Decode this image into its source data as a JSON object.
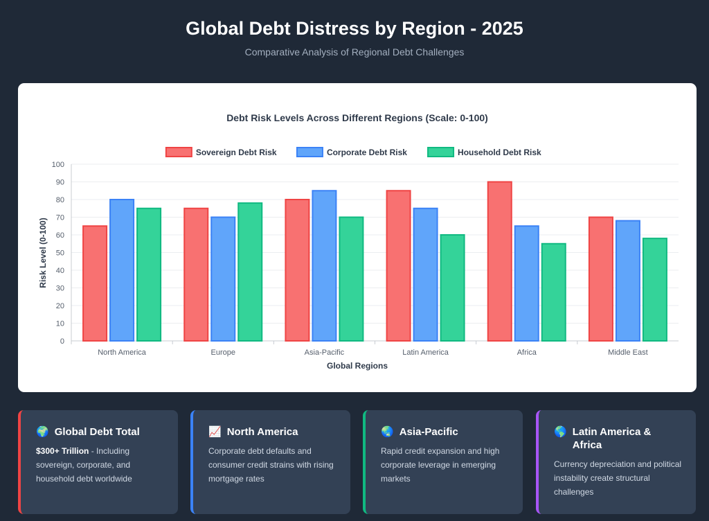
{
  "header": {
    "title": "Global Debt Distress by Region - 2025",
    "subtitle": "Comparative Analysis of Regional Debt Challenges"
  },
  "chart_data": {
    "type": "bar",
    "title": "Debt Risk Levels Across Different Regions (Scale: 0-100)",
    "xlabel": "Global Regions",
    "ylabel": "Risk Level (0-100)",
    "ylim": [
      0,
      100
    ],
    "yticks": [
      0,
      10,
      20,
      30,
      40,
      50,
      60,
      70,
      80,
      90,
      100
    ],
    "grid": true,
    "legend_position": "top",
    "categories": [
      "North America",
      "Europe",
      "Asia-Pacific",
      "Latin America",
      "Africa",
      "Middle East"
    ],
    "series": [
      {
        "name": "Sovereign Debt Risk",
        "color": "#f87171",
        "stroke": "#ef4444",
        "values": [
          65,
          75,
          80,
          85,
          90,
          70
        ]
      },
      {
        "name": "Corporate Debt Risk",
        "color": "#60a5fa",
        "stroke": "#3b82f6",
        "values": [
          80,
          70,
          85,
          75,
          65,
          68
        ]
      },
      {
        "name": "Household Debt Risk",
        "color": "#34d399",
        "stroke": "#10b981",
        "values": [
          75,
          78,
          70,
          60,
          55,
          58
        ]
      }
    ]
  },
  "cards": [
    {
      "icon": "🌍",
      "icon_name": "globe-icon",
      "title": "Global Debt Total",
      "highlight": "$300+ Trillion",
      "text": " - Including sovereign, corporate, and household debt worldwide",
      "border_color": "#ef4444"
    },
    {
      "icon": "📈",
      "icon_name": "chart-increasing-icon",
      "title": "North America",
      "highlight": "",
      "text": "Corporate debt defaults and consumer credit strains with rising mortgage rates",
      "border_color": "#3b82f6"
    },
    {
      "icon": "🌏",
      "icon_name": "globe-asia-icon",
      "title": "Asia-Pacific",
      "highlight": "",
      "text": "Rapid credit expansion and high corporate leverage in emerging markets",
      "border_color": "#10b981"
    },
    {
      "icon": "🌎",
      "icon_name": "globe-americas-icon",
      "title": "Latin America & Africa",
      "highlight": "",
      "text": "Currency depreciation and political instability create structural challenges",
      "border_color": "#a855f7"
    }
  ]
}
